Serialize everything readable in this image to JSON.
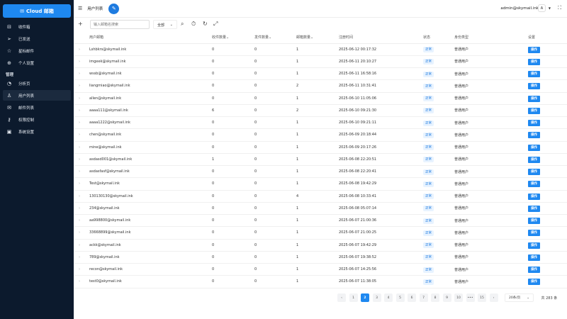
{
  "brand": {
    "label": "Cloud 邮箱",
    "icon": "mail-icon"
  },
  "sidebar": {
    "items": [
      {
        "label": "收件箱",
        "icon": "inbox-icon"
      },
      {
        "label": "已发送",
        "icon": "send-icon"
      },
      {
        "label": "星标邮件",
        "icon": "star-icon"
      },
      {
        "label": "个人设置",
        "icon": "user-settings-icon"
      },
      {
        "label": "分析页",
        "icon": "chart-pie-icon"
      },
      {
        "label": "用户列表",
        "icon": "user-icon",
        "active": true
      },
      {
        "label": "邮件列表",
        "icon": "mail-list-icon"
      },
      {
        "label": "权限控制",
        "icon": "key-icon"
      },
      {
        "label": "系统设置",
        "icon": "monitor-settings-icon"
      }
    ],
    "section": "管理"
  },
  "header": {
    "title": "用户列表",
    "user": "admin@skymail.ink",
    "avatar": "A"
  },
  "toolbar": {
    "search_placeholder": "输入邮箱名搜索",
    "filter": "全部"
  },
  "table": {
    "columns": [
      "用户邮箱",
      "收件数量",
      "发件数量",
      "邮箱数量",
      "注册时间",
      "状态",
      "身份类型",
      "设置"
    ],
    "rows": [
      [
        "Lshbkrs@skymail.ink",
        "0",
        "0",
        "1",
        "2025-06-12 00:17:32"
      ],
      [
        "imgeek@skymail.ink",
        "0",
        "0",
        "1",
        "2025-06-11 20:10:27"
      ],
      [
        "wssb@skymail.ink",
        "0",
        "0",
        "1",
        "2025-06-11 16:58:16"
      ],
      [
        "liangmiao@skymail.ink",
        "0",
        "0",
        "2",
        "2025-06-11 10:31:41"
      ],
      [
        "allen@skymail.ink",
        "0",
        "0",
        "1",
        "2025-06-10 11:05:06"
      ],
      [
        "aaaa111@skymail.ink",
        "6",
        "0",
        "2",
        "2025-06-10 09:21:30"
      ],
      [
        "aaaa1222@skymail.ink",
        "0",
        "0",
        "1",
        "2025-06-10 09:21:11"
      ],
      [
        "chen@skymail.ink",
        "0",
        "0",
        "1",
        "2025-06-09 20:18:44"
      ],
      [
        "mine@skymail.ink",
        "0",
        "0",
        "1",
        "2025-06-09 20:17:26"
      ],
      [
        "asdasd001@skymail.ink",
        "1",
        "0",
        "1",
        "2025-06-08 22:20:51"
      ],
      [
        "asdasfasf@skymail.ink",
        "0",
        "0",
        "1",
        "2025-06-08 22:20:41"
      ],
      [
        "Test@skymail.ink",
        "0",
        "0",
        "1",
        "2025-06-08 19:42:29"
      ],
      [
        "130130130@skymail.ink",
        "0",
        "0",
        "4",
        "2025-06-08 10:33:41"
      ],
      [
        "234@skymail.ink",
        "0",
        "0",
        "1",
        "2025-06-08 05:07:14"
      ],
      [
        "aa998800@skymail.ink",
        "0",
        "0",
        "1",
        "2025-06-07 21:00:36"
      ],
      [
        "33668899@skymail.ink",
        "0",
        "0",
        "1",
        "2025-06-07 21:00:25"
      ],
      [
        "ackk@skymail.ink",
        "0",
        "0",
        "1",
        "2025-06-07 19:42:29"
      ],
      [
        "789@skymail.ink",
        "0",
        "0",
        "1",
        "2025-06-07 19:38:52"
      ],
      [
        "recon@skymail.ink",
        "0",
        "0",
        "1",
        "2025-06-07 14:25:56"
      ],
      [
        "test0@skymail.ink",
        "0",
        "0",
        "1",
        "2025-06-07 11:38:05"
      ]
    ],
    "status": "正常",
    "role": "普通用户",
    "action": "操作"
  },
  "pagination": {
    "pages": [
      "1",
      "2",
      "3",
      "4",
      "5",
      "6",
      "7",
      "8",
      "9",
      "10",
      "•••",
      "15"
    ],
    "current": "2",
    "page_size": "20条/页",
    "total": "共 283 条"
  },
  "colors": {
    "sidebar": "#0c1a2d",
    "accent": "#1e88f0"
  }
}
